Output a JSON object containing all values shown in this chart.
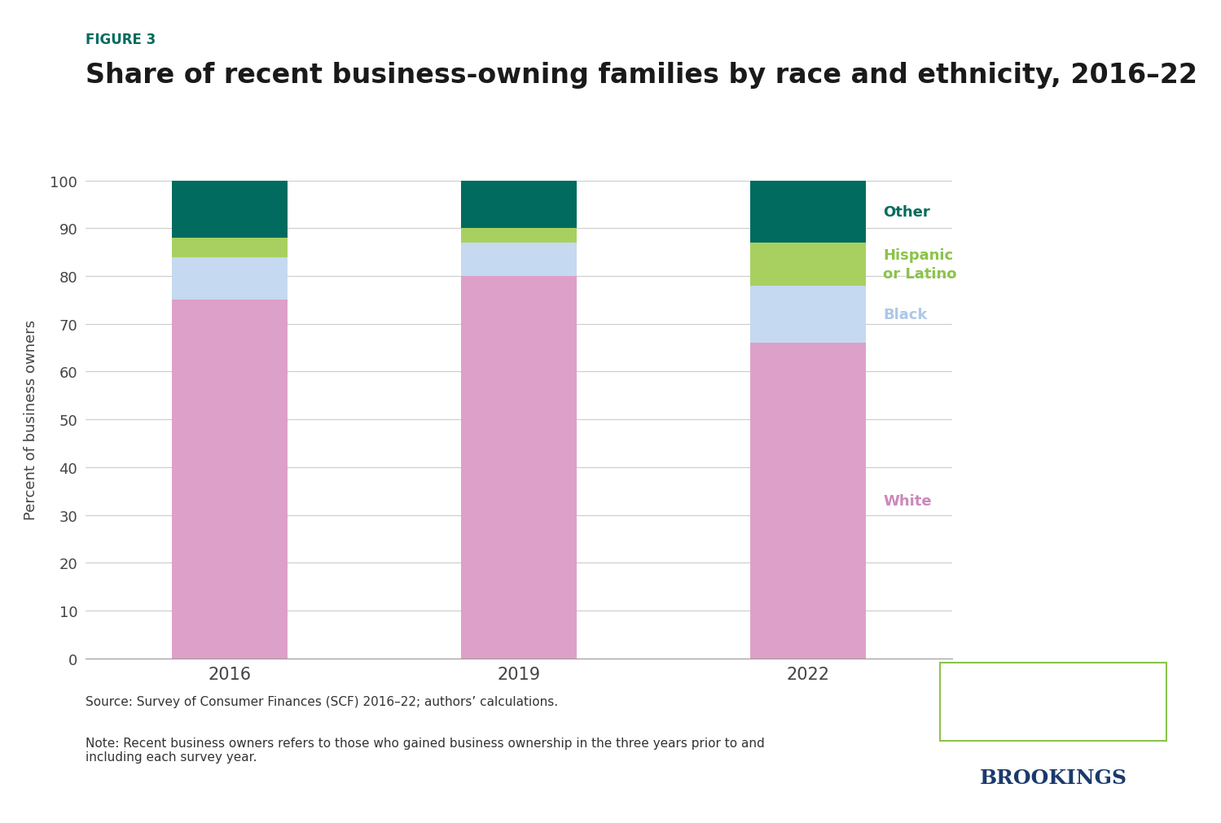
{
  "years": [
    "2016",
    "2019",
    "2022"
  ],
  "categories": [
    "White",
    "Black",
    "Hispanic or Latino",
    "Other"
  ],
  "values": {
    "White": [
      75,
      80,
      66
    ],
    "Black": [
      9,
      7,
      12
    ],
    "Hispanic or Latino": [
      4,
      3,
      9
    ],
    "Other": [
      12,
      10,
      13
    ]
  },
  "colors": {
    "White": "#dda0c8",
    "Black": "#c5d9f0",
    "Hispanic or Latino": "#a8d060",
    "Other": "#006b5e"
  },
  "figure_label": "FIGURE 3",
  "title": "Share of recent business-owning families by race and ethnicity, 2016–22",
  "ylabel": "Percent of business owners",
  "source_text": "Source: Survey of Consumer Finances (SCF) 2016–22; authors’ calculations.",
  "note_text": "Note: Recent business owners refers to those who gained business ownership in the three years prior to and\nincluding each survey year.",
  "background_color": "#ffffff",
  "bar_width": 0.4,
  "ylim": [
    0,
    100
  ],
  "yticks": [
    0,
    10,
    20,
    30,
    40,
    50,
    60,
    70,
    80,
    90,
    100
  ],
  "figure_label_color": "#006b5e",
  "title_color": "#1a1a1a",
  "legend_text_colors": {
    "Other": "#006b5e",
    "Hispanic or Latino": "#8bc34a",
    "Black": "#adc8e8",
    "White": "#cc88bb"
  },
  "hamilton_box_color": "#8bc34a",
  "hamilton_text_color": "#006b5e",
  "brookings_color": "#1a3a6b"
}
